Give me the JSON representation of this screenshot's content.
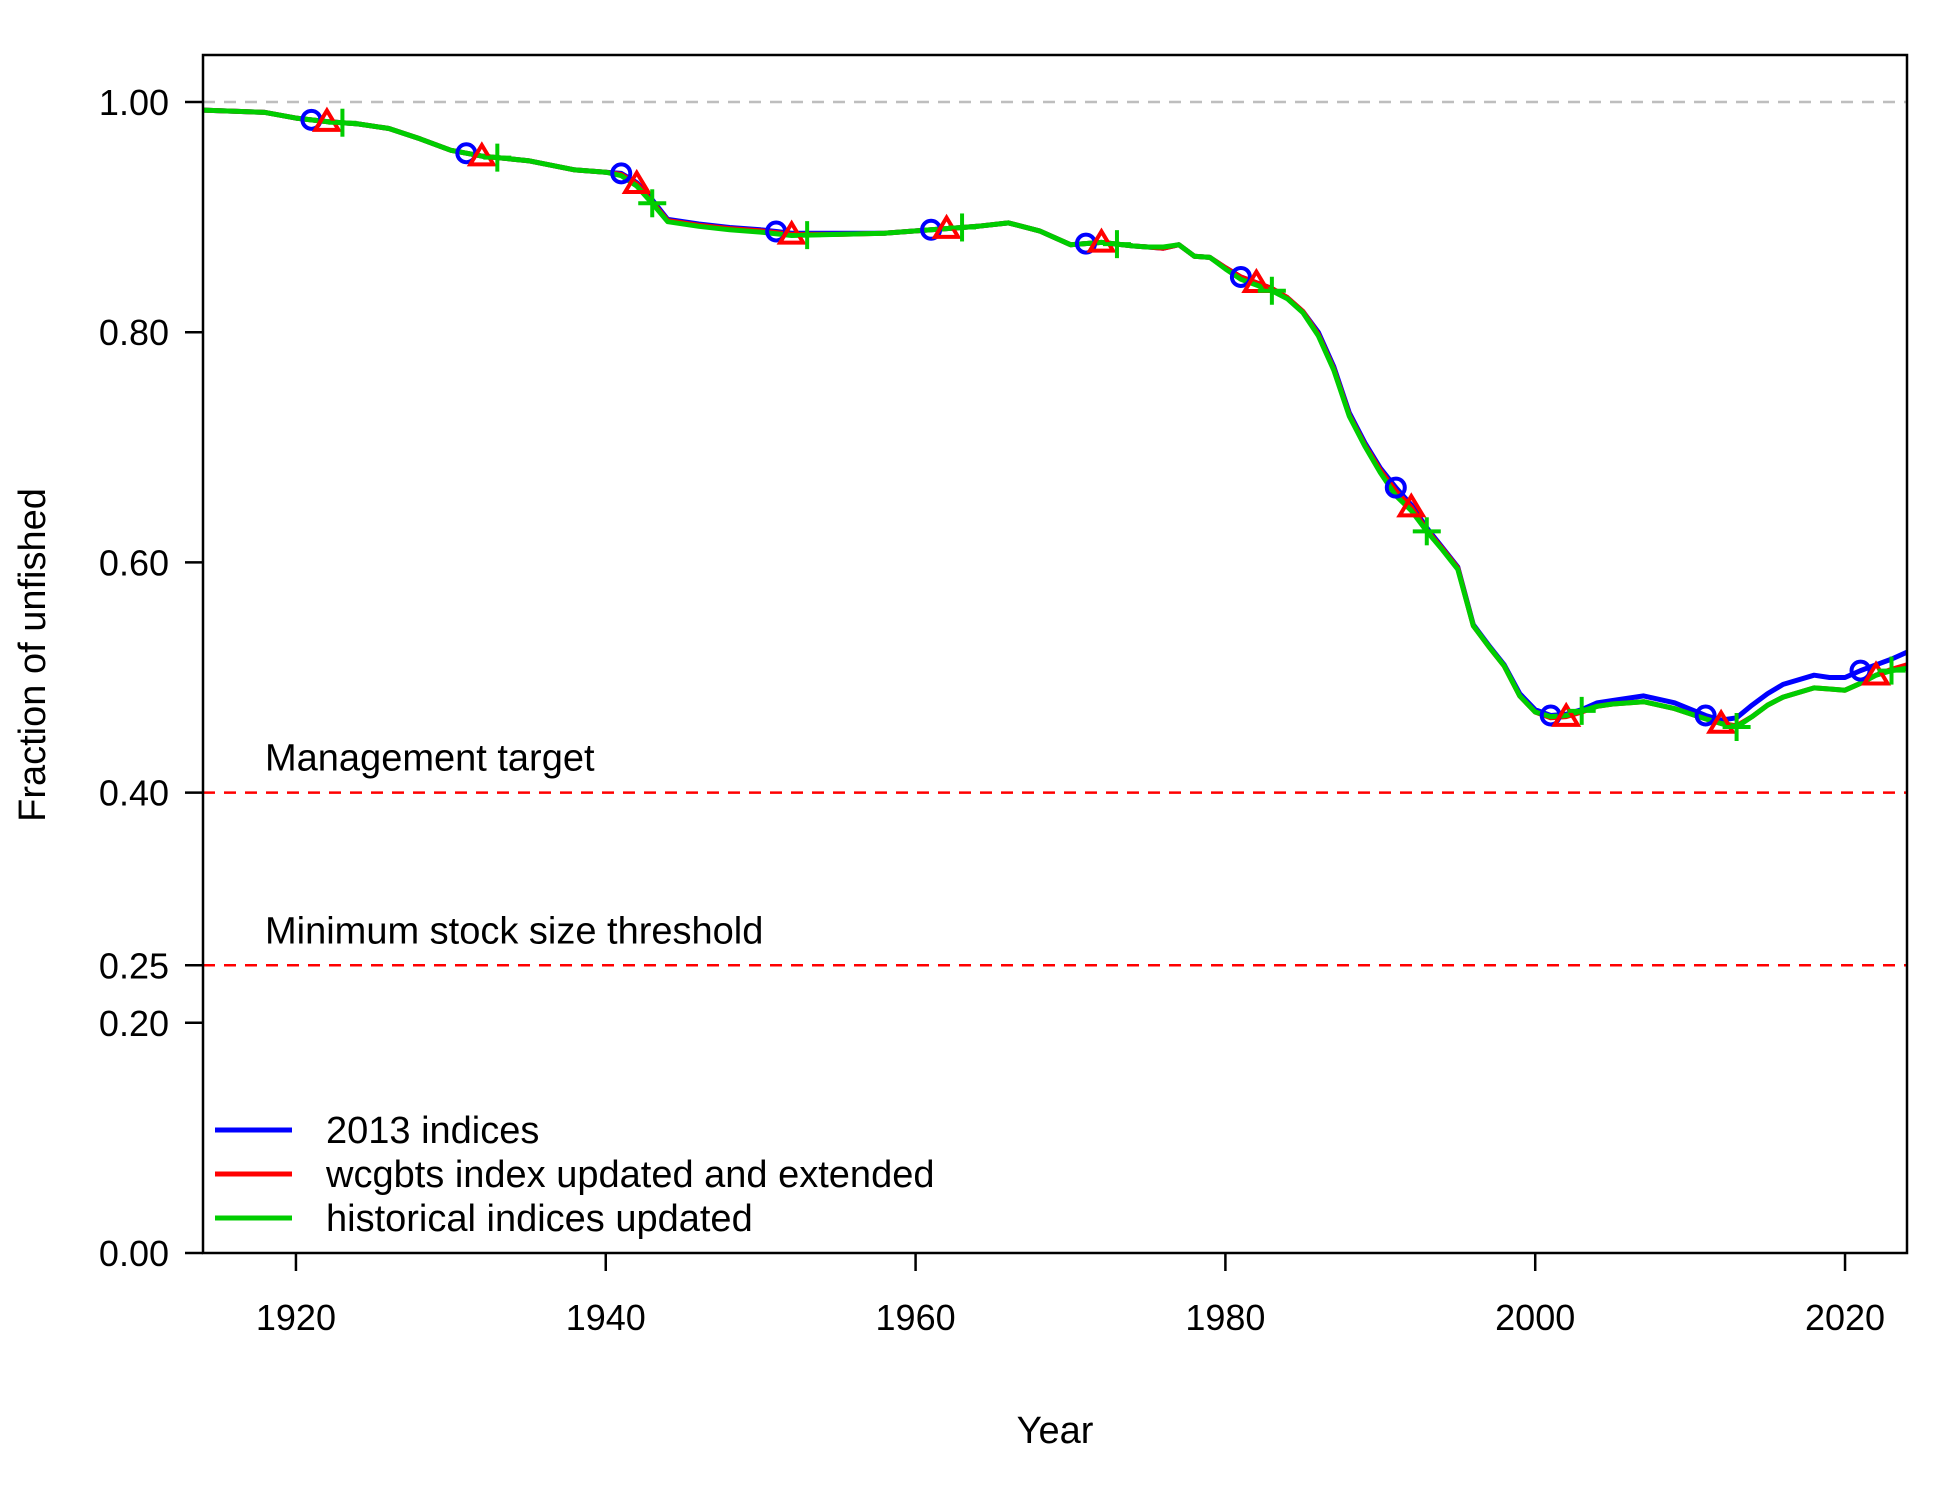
{
  "chart_data": {
    "type": "line",
    "title": "",
    "xlabel": "Year",
    "ylabel": "Fraction of unfished",
    "xlim": [
      1914,
      2024
    ],
    "ylim": [
      0,
      1.05
    ],
    "x_ticks": [
      1920,
      1940,
      1960,
      1980,
      2000,
      2020
    ],
    "y_ticks": [
      0.0,
      0.2,
      0.25,
      0.4,
      0.6,
      0.8,
      1.0
    ],
    "y_tick_labels": [
      "0.00",
      "0.20",
      "0.25",
      "0.40",
      "0.60",
      "0.80",
      "1.00"
    ],
    "grid": false,
    "legend_position": "bottom-left",
    "reference_lines": [
      {
        "value": 1.0,
        "label": "",
        "color": "#bebebe"
      },
      {
        "value": 0.4,
        "label": "Management target",
        "color": "#ff0000"
      },
      {
        "value": 0.25,
        "label": "Minimum stock size threshold",
        "color": "#ff0000"
      }
    ],
    "series": [
      {
        "name": "2013 indices",
        "color": "#0000ff",
        "marker": "circle",
        "marker_x": [
          1921,
          1931,
          1941,
          1951,
          1961,
          1971,
          1981,
          1991,
          2001,
          2011,
          2021
        ],
        "x": [
          1914,
          1918,
          1920,
          1922,
          1924,
          1926,
          1928,
          1930,
          1932,
          1935,
          1938,
          1940,
          1941,
          1942,
          1943,
          1944,
          1946,
          1948,
          1950,
          1952,
          1955,
          1958,
          1961,
          1963,
          1964,
          1966,
          1968,
          1970,
          1972,
          1974,
          1975,
          1976,
          1977,
          1978,
          1979,
          1980,
          1981,
          1983,
          1984,
          1985,
          1986,
          1987,
          1988,
          1989,
          1990,
          1991,
          1992,
          1993,
          1994,
          1995,
          1996,
          1997,
          1998,
          1999,
          2000,
          2001,
          2002,
          2003,
          2004,
          2005,
          2007,
          2009,
          2011,
          2012,
          2013,
          2014,
          2015,
          2016,
          2018,
          2019,
          2020,
          2021,
          2022,
          2023,
          2024
        ],
        "y": [
          0.993,
          0.991,
          0.986,
          0.983,
          0.981,
          0.977,
          0.968,
          0.958,
          0.953,
          0.949,
          0.941,
          0.939,
          0.938,
          0.93,
          0.915,
          0.898,
          0.894,
          0.891,
          0.889,
          0.886,
          0.886,
          0.886,
          0.889,
          0.891,
          0.892,
          0.895,
          0.888,
          0.876,
          0.878,
          0.875,
          0.874,
          0.873,
          0.876,
          0.866,
          0.865,
          0.856,
          0.848,
          0.838,
          0.83,
          0.818,
          0.8,
          0.77,
          0.73,
          0.704,
          0.682,
          0.665,
          0.65,
          0.63,
          0.613,
          0.596,
          0.546,
          0.528,
          0.511,
          0.486,
          0.472,
          0.467,
          0.468,
          0.472,
          0.478,
          0.48,
          0.484,
          0.478,
          0.467,
          0.463,
          0.465,
          0.476,
          0.486,
          0.494,
          0.502,
          0.5,
          0.5,
          0.506,
          0.511,
          0.516,
          0.522
        ]
      },
      {
        "name": "wcgbts index updated and extended",
        "color": "#ff0000",
        "marker": "triangle",
        "marker_x": [
          1922,
          1932,
          1942,
          1952,
          1962,
          1972,
          1982,
          1992,
          2002,
          2012,
          2022
        ],
        "x": [
          1914,
          1918,
          1920,
          1922,
          1924,
          1926,
          1928,
          1930,
          1932,
          1935,
          1938,
          1940,
          1941,
          1942,
          1943,
          1944,
          1946,
          1948,
          1950,
          1952,
          1955,
          1958,
          1961,
          1963,
          1964,
          1966,
          1968,
          1970,
          1972,
          1974,
          1975,
          1976,
          1977,
          1978,
          1979,
          1980,
          1981,
          1983,
          1984,
          1985,
          1986,
          1987,
          1988,
          1989,
          1990,
          1991,
          1992,
          1993,
          1994,
          1995,
          1996,
          1997,
          1998,
          1999,
          2000,
          2001,
          2002,
          2003,
          2004,
          2005,
          2007,
          2009,
          2011,
          2012,
          2013,
          2014,
          2015,
          2016,
          2018,
          2019,
          2020,
          2021,
          2022,
          2023,
          2024
        ],
        "y": [
          0.993,
          0.991,
          0.986,
          0.983,
          0.981,
          0.977,
          0.968,
          0.958,
          0.953,
          0.949,
          0.941,
          0.939,
          0.937,
          0.929,
          0.913,
          0.897,
          0.893,
          0.89,
          0.888,
          0.885,
          0.885,
          0.886,
          0.889,
          0.891,
          0.892,
          0.895,
          0.888,
          0.876,
          0.878,
          0.875,
          0.874,
          0.873,
          0.876,
          0.866,
          0.865,
          0.856,
          0.848,
          0.838,
          0.83,
          0.818,
          0.798,
          0.768,
          0.728,
          0.702,
          0.68,
          0.662,
          0.648,
          0.628,
          0.612,
          0.595,
          0.545,
          0.527,
          0.51,
          0.484,
          0.47,
          0.465,
          0.466,
          0.47,
          0.475,
          0.477,
          0.479,
          0.473,
          0.464,
          0.46,
          0.458,
          0.466,
          0.476,
          0.483,
          0.491,
          0.49,
          0.489,
          0.495,
          0.502,
          0.507,
          0.511
        ]
      },
      {
        "name": "historical indices updated",
        "color": "#00cd00",
        "marker": "plus",
        "marker_x": [
          1923,
          1933,
          1943,
          1953,
          1963,
          1973,
          1983,
          1993,
          2003,
          2013,
          2023
        ],
        "x": [
          1914,
          1918,
          1920,
          1922,
          1924,
          1926,
          1928,
          1930,
          1932,
          1935,
          1938,
          1940,
          1941,
          1942,
          1943,
          1944,
          1946,
          1948,
          1950,
          1952,
          1955,
          1958,
          1961,
          1963,
          1964,
          1966,
          1968,
          1970,
          1972,
          1974,
          1975,
          1976,
          1977,
          1978,
          1979,
          1980,
          1981,
          1983,
          1984,
          1985,
          1986,
          1987,
          1988,
          1989,
          1990,
          1991,
          1992,
          1993,
          1994,
          1995,
          1996,
          1997,
          1998,
          1999,
          2000,
          2001,
          2002,
          2003,
          2004,
          2005,
          2007,
          2009,
          2011,
          2012,
          2013,
          2014,
          2015,
          2016,
          2018,
          2019,
          2020,
          2021,
          2022,
          2023,
          2024
        ],
        "y": [
          0.993,
          0.991,
          0.986,
          0.983,
          0.981,
          0.977,
          0.968,
          0.958,
          0.953,
          0.949,
          0.941,
          0.939,
          0.936,
          0.927,
          0.912,
          0.896,
          0.892,
          0.889,
          0.887,
          0.884,
          0.885,
          0.886,
          0.889,
          0.891,
          0.892,
          0.895,
          0.888,
          0.876,
          0.878,
          0.875,
          0.874,
          0.874,
          0.876,
          0.866,
          0.865,
          0.855,
          0.846,
          0.836,
          0.829,
          0.817,
          0.797,
          0.767,
          0.727,
          0.701,
          0.678,
          0.658,
          0.645,
          0.627,
          0.611,
          0.594,
          0.545,
          0.527,
          0.51,
          0.484,
          0.47,
          0.466,
          0.467,
          0.471,
          0.475,
          0.477,
          0.479,
          0.473,
          0.464,
          0.46,
          0.457,
          0.466,
          0.476,
          0.483,
          0.491,
          0.49,
          0.489,
          0.495,
          0.502,
          0.506,
          0.508
        ]
      }
    ]
  }
}
